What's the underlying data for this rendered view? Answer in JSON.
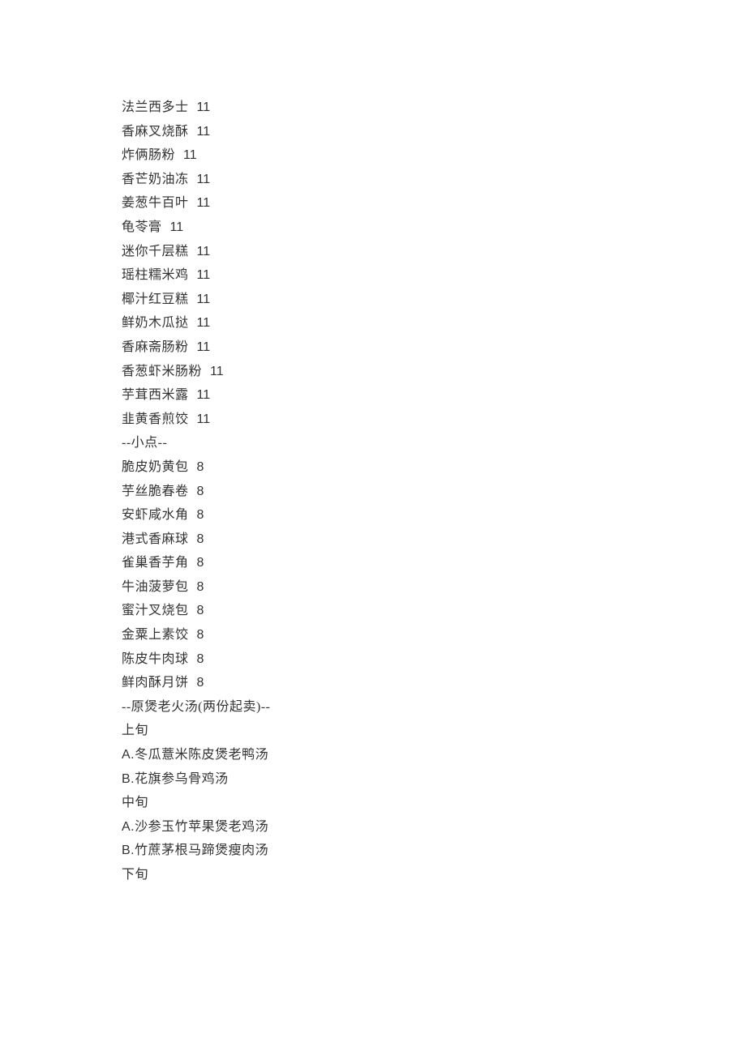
{
  "textColor": "#333333",
  "backgroundColor": "#ffffff",
  "fontSize": 16,
  "sections": {
    "zhongdian": {
      "items": [
        {
          "name": "法兰西多士",
          "price": "11"
        },
        {
          "name": "香麻叉烧酥",
          "price": "11"
        },
        {
          "name": "炸俩肠粉",
          "price": "11"
        },
        {
          "name": "香芒奶油冻",
          "price": "11"
        },
        {
          "name": "姜葱牛百叶",
          "price": "11"
        },
        {
          "name": "龟苓膏",
          "price": "11"
        },
        {
          "name": "迷你千层糕",
          "price": "11"
        },
        {
          "name": "瑶柱糯米鸡",
          "price": "11"
        },
        {
          "name": "椰汁红豆糕",
          "price": "11"
        },
        {
          "name": "鲜奶木瓜挞",
          "price": "11"
        },
        {
          "name": "香麻斋肠粉",
          "price": "11"
        },
        {
          "name": "香葱虾米肠粉",
          "price": "11"
        },
        {
          "name": "芋茸西米露",
          "price": "11"
        },
        {
          "name": "韭黄香煎饺",
          "price": "11"
        }
      ]
    },
    "xiaodian": {
      "header": "--小点--",
      "items": [
        {
          "name": "脆皮奶黄包",
          "price": "8"
        },
        {
          "name": "芋丝脆春卷",
          "price": "8"
        },
        {
          "name": "安虾咸水角",
          "price": "8"
        },
        {
          "name": "港式香麻球",
          "price": "8"
        },
        {
          "name": "雀巢香芋角",
          "price": "8"
        },
        {
          "name": "牛油菠萝包",
          "price": "8"
        },
        {
          "name": "蜜汁叉烧包",
          "price": "8"
        },
        {
          "name": "金粟上素饺",
          "price": "8"
        },
        {
          "name": "陈皮牛肉球",
          "price": "8"
        },
        {
          "name": "鲜肉酥月饼",
          "price": "8"
        }
      ]
    },
    "soup": {
      "header": "--原煲老火汤(两份起卖)--",
      "periods": [
        {
          "label": "上旬",
          "options": [
            {
              "prefix": "A.",
              "name": "冬瓜薏米陈皮煲老鸭汤"
            },
            {
              "prefix": "B.",
              "name": "花旗参乌骨鸡汤"
            }
          ]
        },
        {
          "label": "中旬",
          "options": [
            {
              "prefix": "A.",
              "name": "沙参玉竹苹果煲老鸡汤"
            },
            {
              "prefix": "B.",
              "name": "竹蔗茅根马蹄煲瘦肉汤"
            }
          ]
        },
        {
          "label": "下旬",
          "options": []
        }
      ]
    }
  }
}
